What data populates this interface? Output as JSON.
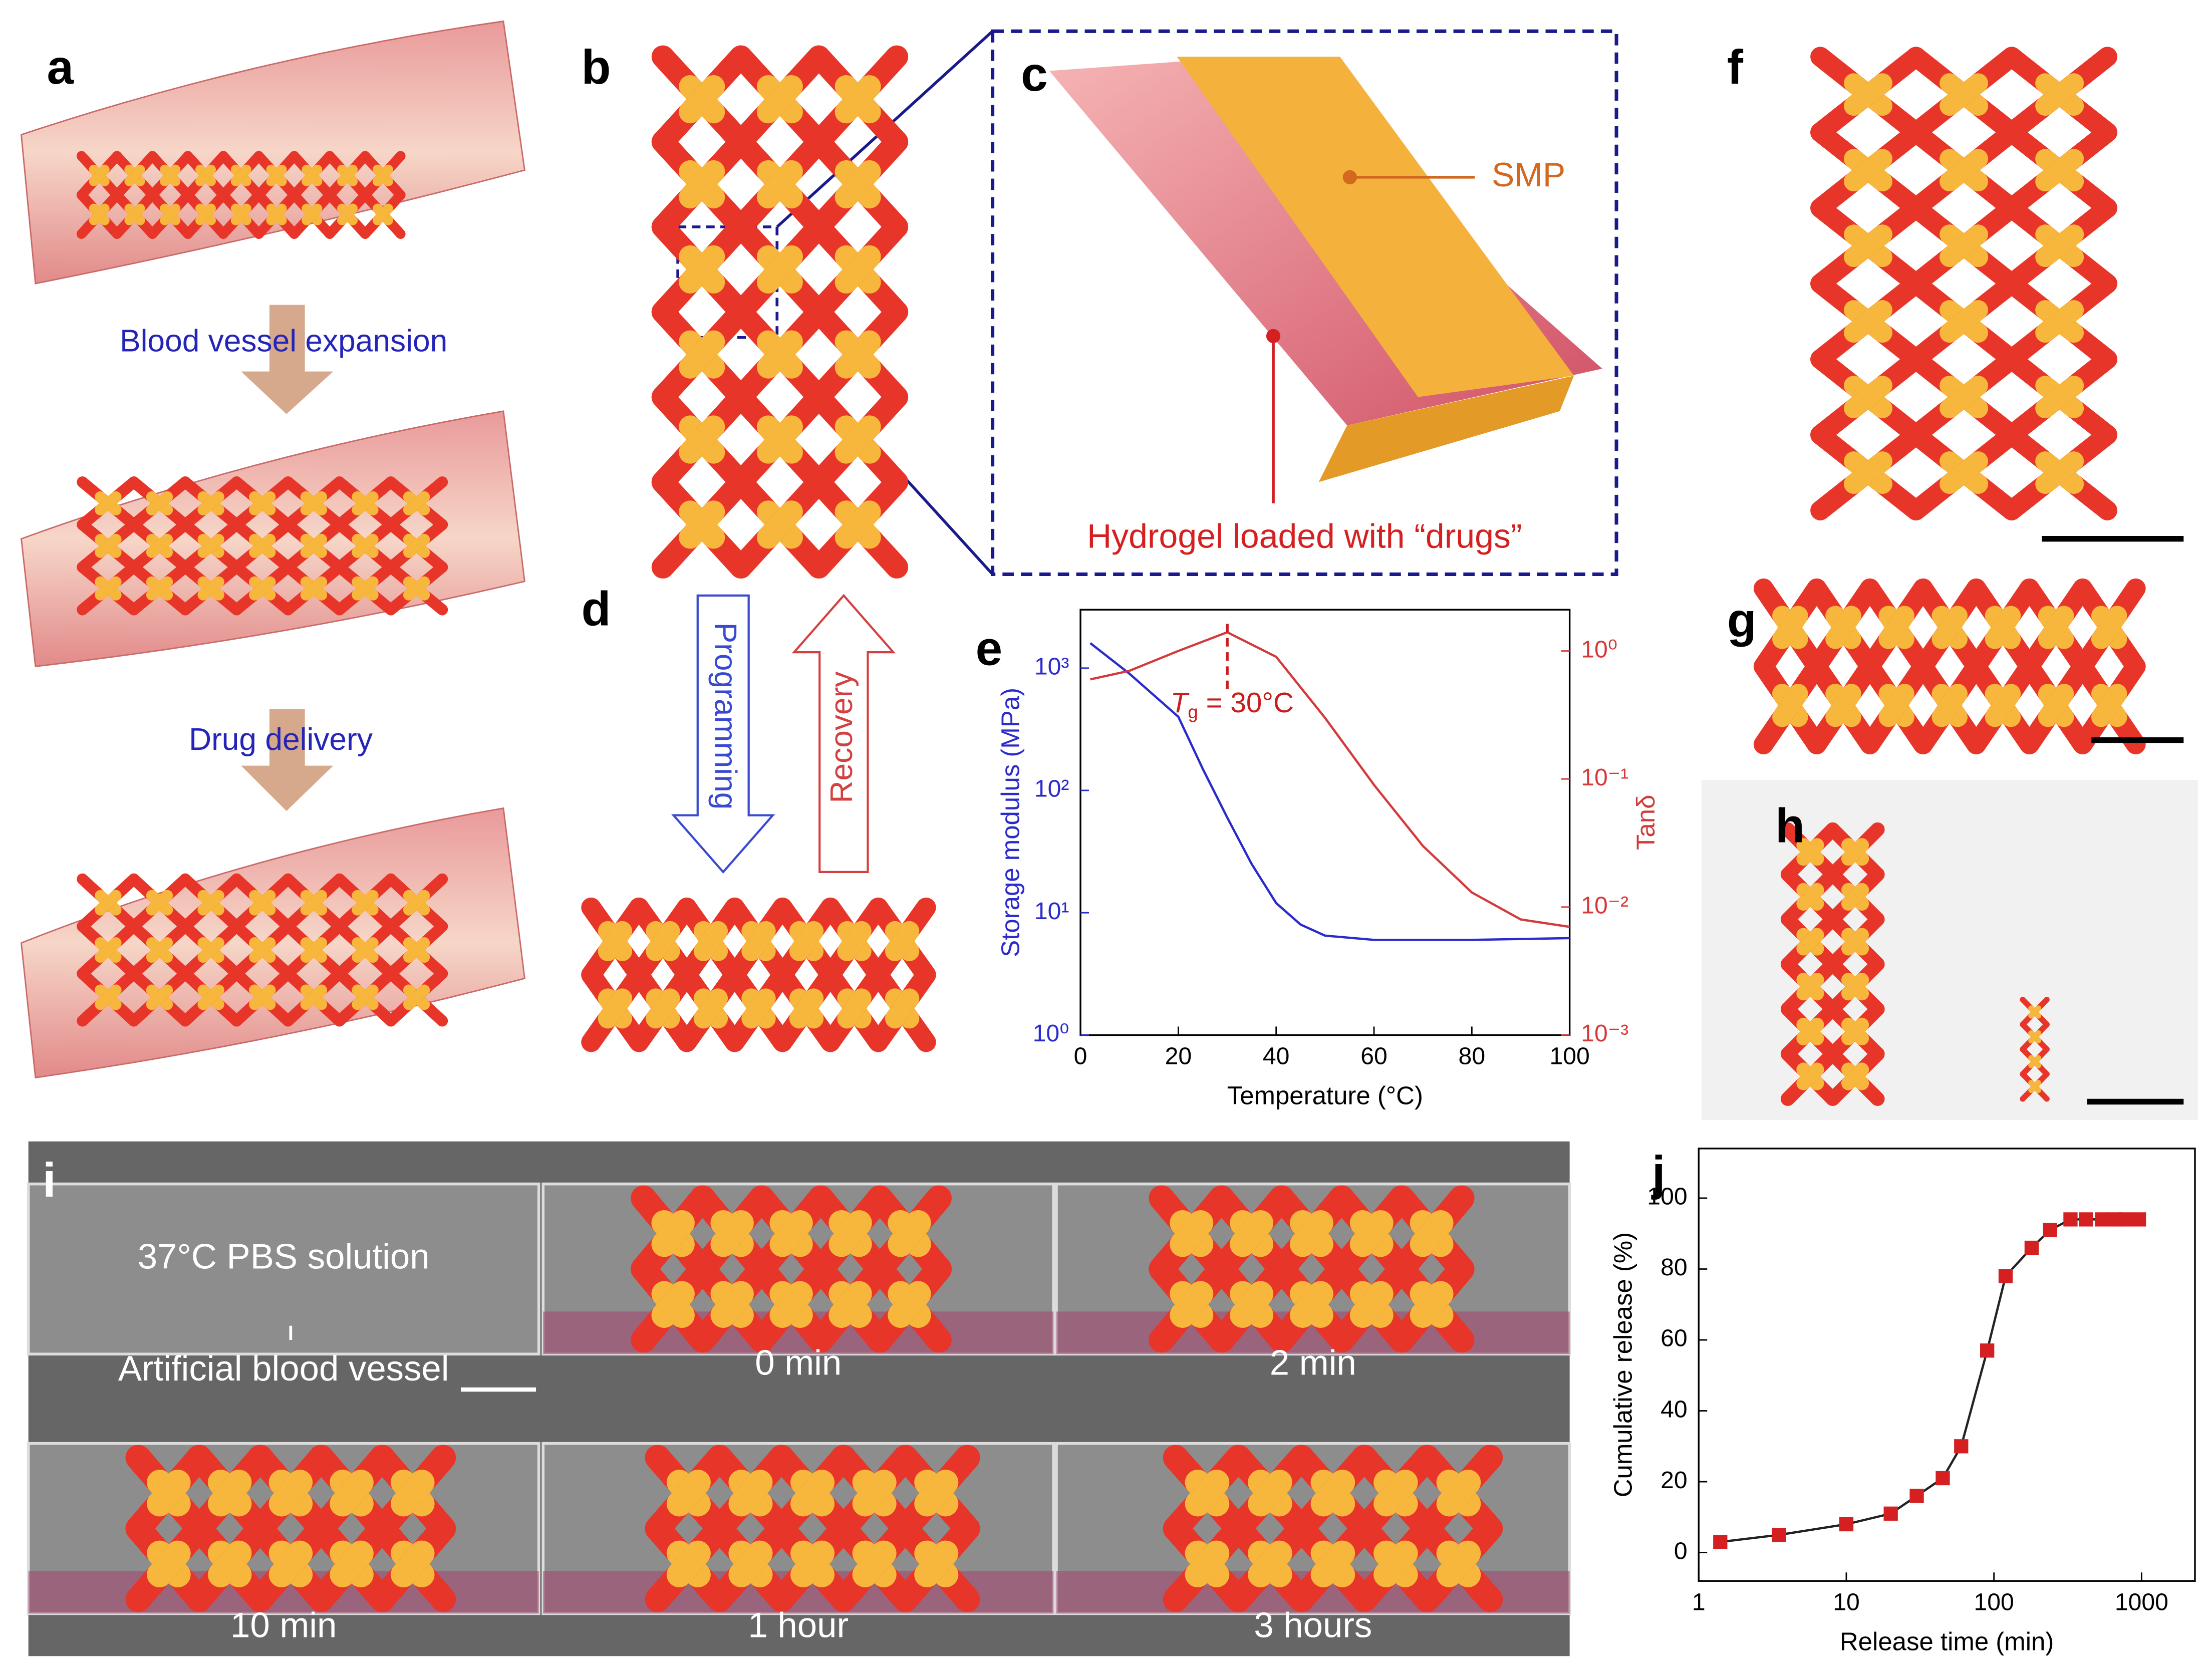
{
  "panels": {
    "labels": [
      "a",
      "b",
      "c",
      "d",
      "e",
      "f",
      "g",
      "h",
      "i",
      "j"
    ],
    "a": {
      "step1": "Blood vessel expansion",
      "step2": "Drug delivery"
    },
    "c": {
      "smp": "SMP",
      "hydrogel": "Hydrogel loaded with “drugs”"
    },
    "d": {
      "down": "Programming",
      "up": "Recovery"
    },
    "i": {
      "medium": "37°C PBS solution",
      "vessel": "Artificial blood vessel",
      "times": [
        "0 min",
        "2 min",
        "10 min",
        "1 hour",
        "3 hours"
      ]
    }
  },
  "chart_data": [
    {
      "type": "line",
      "xlabel": "Temperature (°C)",
      "ylabel": "Storage modulus (MPa)",
      "y2label": "Tanδ",
      "xlim": [
        0,
        100
      ],
      "xticks": [
        0,
        20,
        40,
        60,
        80,
        100
      ],
      "ylim": [
        1,
        3000
      ],
      "ylog": true,
      "yticks": [
        {
          "value": 1,
          "label": "10⁰"
        },
        {
          "value": 10,
          "label": "10¹"
        },
        {
          "value": 100,
          "label": "10²"
        },
        {
          "value": 1000,
          "label": "10³"
        }
      ],
      "y2lim": [
        0.001,
        2.1
      ],
      "y2log": true,
      "y2ticks": [
        {
          "value": 0.001,
          "label": "10⁻³"
        },
        {
          "value": 0.01,
          "label": "10⁻²"
        },
        {
          "value": 0.1,
          "label": "10⁻¹"
        },
        {
          "value": 1,
          "label": "10⁰"
        }
      ],
      "series": [
        {
          "name": "Storage modulus",
          "color": "#2b2bcc",
          "x": [
            2,
            10,
            20,
            25,
            30,
            35,
            40,
            45,
            50,
            60,
            80,
            100
          ],
          "values": [
            1600,
            900,
            400,
            150,
            60,
            25,
            12,
            8,
            6.5,
            6,
            6,
            6.2
          ]
        },
        {
          "name": "Tanδ",
          "color": "#d43a3a",
          "axis": "y2",
          "x": [
            2,
            10,
            20,
            30,
            40,
            50,
            60,
            70,
            80,
            90,
            100
          ],
          "values": [
            0.6,
            0.7,
            1.0,
            1.4,
            0.9,
            0.3,
            0.09,
            0.03,
            0.013,
            0.008,
            0.007
          ]
        }
      ],
      "annotation": {
        "x": 30,
        "symbol": "T",
        "subscript": "g",
        "text": " = 30°C"
      }
    },
    {
      "type": "line",
      "xlabel": "Release time (min)",
      "ylabel": "Cumulative release (%)",
      "xlim": [
        1,
        2300
      ],
      "xlog": true,
      "xticks": [
        1,
        10,
        100,
        1000
      ],
      "ylim": [
        -8,
        114
      ],
      "yticks": [
        0,
        20,
        40,
        60,
        80,
        100
      ],
      "series": [
        {
          "name": "Cumulative release",
          "color": "#222222",
          "marker_color": "#d42020",
          "x": [
            1.4,
            3.5,
            10,
            20,
            30,
            45,
            60,
            90,
            120,
            180,
            240,
            330,
            420,
            540,
            660,
            780,
            960
          ],
          "values": [
            3,
            5,
            8,
            11,
            16,
            21,
            30,
            57,
            78,
            86,
            91,
            94,
            94,
            94,
            94,
            94,
            94
          ]
        }
      ]
    }
  ]
}
